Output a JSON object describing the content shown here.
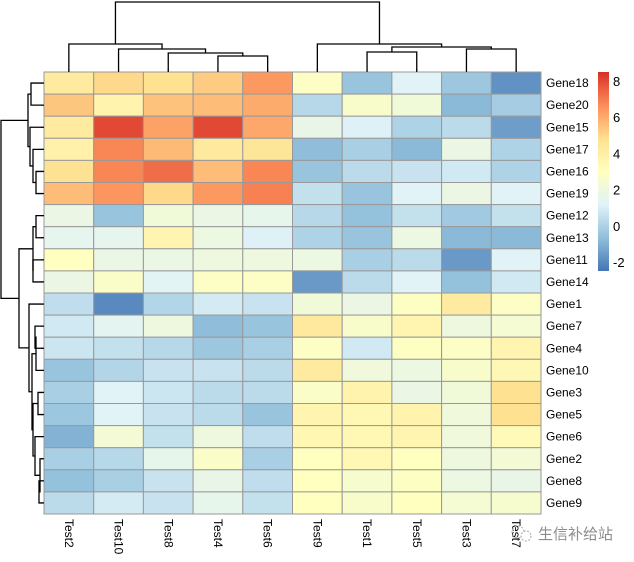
{
  "chart_data": {
    "type": "heatmap",
    "title": "",
    "columns": [
      "Test2",
      "Test10",
      "Test8",
      "Test4",
      "Test6",
      "Test9",
      "Test1",
      "Test5",
      "Test3",
      "Test7"
    ],
    "rows": [
      "Gene18",
      "Gene20",
      "Gene15",
      "Gene17",
      "Gene16",
      "Gene19",
      "Gene12",
      "Gene13",
      "Gene11",
      "Gene14",
      "Gene1",
      "Gene7",
      "Gene4",
      "Gene10",
      "Gene3",
      "Gene5",
      "Gene6",
      "Gene2",
      "Gene8",
      "Gene9"
    ],
    "values": [
      [
        4.2,
        5.0,
        4.8,
        5.3,
        6.4,
        2.8,
        -0.5,
        1.2,
        -0.4,
        -1.8
      ],
      [
        5.4,
        3.7,
        5.5,
        5.6,
        6.0,
        0.2,
        2.6,
        2.2,
        -0.8,
        -0.2
      ],
      [
        4.2,
        8.0,
        6.2,
        8.0,
        6.1,
        1.7,
        1.1,
        0.0,
        0.3,
        -1.5
      ],
      [
        3.8,
        6.8,
        5.7,
        4.3,
        4.5,
        -0.7,
        -0.1,
        -0.8,
        1.8,
        0.0
      ],
      [
        4.7,
        6.8,
        7.3,
        5.6,
        6.8,
        -0.5,
        0.3,
        0.6,
        0.8,
        0.0
      ],
      [
        5.6,
        6.5,
        5.0,
        6.4,
        6.9,
        0.5,
        -0.5,
        1.2,
        1.8,
        1.2
      ],
      [
        1.8,
        -0.5,
        2.2,
        1.8,
        1.6,
        0.2,
        -0.6,
        0.5,
        -0.3,
        0.5
      ],
      [
        1.5,
        1.5,
        3.6,
        1.9,
        1.1,
        0.0,
        -0.5,
        1.9,
        -0.8,
        -0.8
      ],
      [
        3.0,
        1.8,
        1.8,
        2.0,
        2.0,
        1.9,
        -0.1,
        0.3,
        -1.6,
        1.2
      ],
      [
        1.8,
        2.7,
        1.3,
        2.8,
        2.8,
        -1.6,
        0.3,
        1.2,
        -0.6,
        0.8
      ],
      [
        0.4,
        -2.0,
        0.1,
        0.9,
        0.6,
        2.2,
        1.8,
        2.9,
        4.2,
        2.8
      ],
      [
        0.8,
        1.4,
        2.0,
        -0.7,
        -0.5,
        4.3,
        2.6,
        3.6,
        2.0,
        2.4
      ],
      [
        0.7,
        0.5,
        0.2,
        -0.4,
        -0.1,
        2.8,
        0.8,
        2.9,
        2.8,
        3.6
      ],
      [
        -0.5,
        0.1,
        0.6,
        0.6,
        0.3,
        4.2,
        2.1,
        1.9,
        2.6,
        3.4
      ],
      [
        -0.1,
        1.2,
        0.7,
        0.3,
        0.3,
        2.7,
        3.7,
        1.8,
        2.2,
        4.8
      ],
      [
        -0.4,
        1.2,
        0.6,
        0.3,
        -0.5,
        3.6,
        3.4,
        3.7,
        2.1,
        4.8
      ],
      [
        -1.0,
        2.3,
        0.5,
        2.0,
        0.4,
        3.5,
        3.4,
        3.6,
        2.1,
        3.3
      ],
      [
        -0.1,
        0.2,
        1.6,
        2.7,
        -0.1,
        3.0,
        3.4,
        3.0,
        2.0,
        2.3
      ],
      [
        -0.6,
        -0.1,
        0.6,
        1.7,
        0.4,
        3.0,
        2.5,
        2.9,
        1.9,
        1.7
      ],
      [
        0.3,
        0.9,
        0.6,
        1.6,
        0.5,
        3.0,
        2.6,
        3.0,
        2.4,
        2.5
      ]
    ],
    "colorbar": {
      "ticks": [
        8,
        6,
        4,
        2,
        0,
        -2
      ],
      "range": [
        -2.5,
        8.5
      ],
      "colors": [
        "#4575B4",
        "#91BFDB",
        "#E0F3F8",
        "#FFFFBF",
        "#FEE090",
        "#FC8D59",
        "#D73027"
      ]
    },
    "row_dendrogram": "left",
    "column_dendrogram": "top",
    "xlabel": "",
    "ylabel": ""
  },
  "watermark": {
    "icon": "wechat-icon",
    "text": "生信补给站"
  }
}
